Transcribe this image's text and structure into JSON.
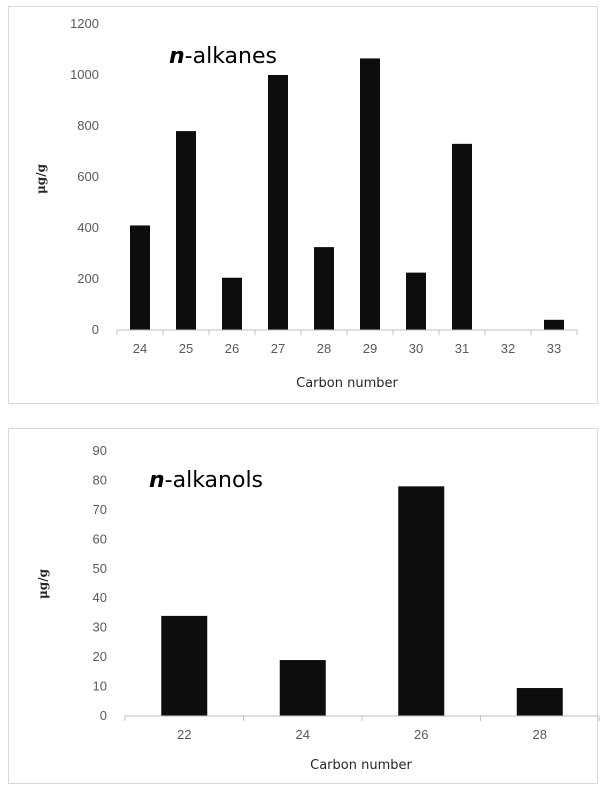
{
  "chart_data": [
    {
      "type": "bar",
      "title_italic": "n",
      "title_rest": "-alkanes",
      "categories": [
        "24",
        "25",
        "26",
        "27",
        "28",
        "29",
        "30",
        "31",
        "32",
        "33"
      ],
      "values": [
        410,
        780,
        205,
        1000,
        325,
        1065,
        225,
        730,
        0,
        40
      ],
      "xlabel": "Carbon number",
      "ylabel": "μg/g",
      "ylim": [
        0,
        1200
      ],
      "yticks": [
        "0",
        "200",
        "400",
        "600",
        "800",
        "1000",
        "1200"
      ],
      "grid": false,
      "bar_color": "#0d0d0d"
    },
    {
      "type": "bar",
      "title_italic": "n",
      "title_rest": "-alkanols",
      "categories": [
        "22",
        "24",
        "26",
        "28"
      ],
      "values": [
        34,
        19,
        78,
        9.5
      ],
      "xlabel": "Carbon number",
      "ylabel": "μg/g",
      "ylim": [
        0,
        90
      ],
      "yticks": [
        "0",
        "10",
        "20",
        "30",
        "40",
        "50",
        "60",
        "70",
        "80",
        "90"
      ],
      "grid": false,
      "bar_color": "#0d0d0d"
    }
  ]
}
